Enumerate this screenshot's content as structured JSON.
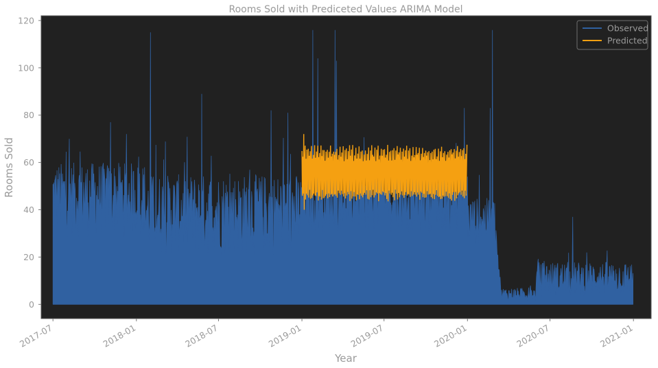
{
  "colors": {
    "background": "#ffffff",
    "plot_background": "#212121",
    "text": "#9a9a9a",
    "observed": "#3061a1",
    "predicted": "#f5a011",
    "legend_background": "#212121",
    "legend_border": "#6e6e6e"
  },
  "chart_data": {
    "type": "area",
    "title": "Rooms Sold with Prediceted Values ARIMA Model",
    "xlabel": "Year",
    "ylabel": "Rooms Sold",
    "xlim": [
      "2017-06-05",
      "2021-02-09"
    ],
    "ylim": [
      -6,
      122
    ],
    "grid": false,
    "legend_position": "top-right",
    "x_ticks": [
      "2017-07",
      "2018-01",
      "2018-07",
      "2019-01",
      "2019-07",
      "2020-01",
      "2020-07",
      "2021-01"
    ],
    "y_ticks": [
      "0",
      "20",
      "40",
      "60",
      "80",
      "100",
      "120"
    ],
    "series": [
      {
        "name": "Observed",
        "kind": "filled-daily",
        "daily_range_start": "2017-07-01",
        "daily_range_end": "2020-12-31",
        "approx_daily_range": [
          {
            "from": "2017-07-01",
            "to": "2018-01-20",
            "min": 28,
            "max": 60
          },
          {
            "from": "2018-01-20",
            "to": "2018-12-31",
            "min": 20,
            "max": 55
          },
          {
            "from": "2019-01-01",
            "to": "2020-01-01",
            "min": 30,
            "max": 58
          },
          {
            "from": "2020-01-01",
            "to": "2020-03-01",
            "min": 25,
            "max": 45
          },
          {
            "from": "2020-03-15",
            "to": "2020-05-31",
            "min": 1,
            "max": 7
          },
          {
            "from": "2020-06-01",
            "to": "2020-12-31",
            "min": 3,
            "max": 18
          }
        ],
        "spikes": [
          {
            "x": "2018-02-01",
            "y": 115
          },
          {
            "x": "2018-05-25",
            "y": 89
          },
          {
            "x": "2017-11-05",
            "y": 77
          },
          {
            "x": "2017-12-10",
            "y": 72
          },
          {
            "x": "2018-10-25",
            "y": 82
          },
          {
            "x": "2018-12-01",
            "y": 81
          },
          {
            "x": "2019-01-25",
            "y": 116
          },
          {
            "x": "2019-02-05",
            "y": 104
          },
          {
            "x": "2019-03-15",
            "y": 116
          },
          {
            "x": "2019-03-18",
            "y": 103
          },
          {
            "x": "2019-12-25",
            "y": 83
          },
          {
            "x": "2020-02-25",
            "y": 116
          },
          {
            "x": "2020-02-20",
            "y": 83
          },
          {
            "x": "2020-08-20",
            "y": 37
          }
        ]
      },
      {
        "name": "Predicted",
        "kind": "line",
        "x_range": [
          "2019-01-01",
          "2019-12-31"
        ],
        "baseline": 56,
        "oscillation_min": 45,
        "oscillation_max": 66,
        "extremes": [
          {
            "x": "2019-01-05",
            "y": 72
          },
          {
            "x": "2019-01-06",
            "y": 40
          }
        ]
      }
    ]
  }
}
